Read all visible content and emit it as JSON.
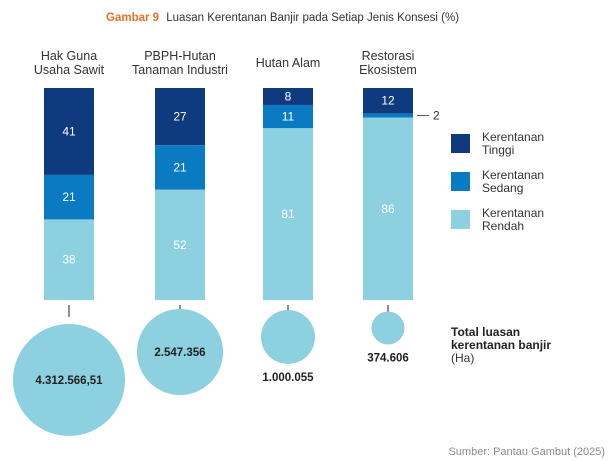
{
  "chart_data": {
    "type": "bar",
    "stacked": true,
    "title_prefix": "Gambar 9",
    "title": "Luasan Kerentanan Banjir pada Setiap Jenis Konsesi (%)",
    "categories": [
      [
        "Hak Guna",
        "Usaha Sawit"
      ],
      [
        "PBPH-Hutan",
        "Tanaman Industri"
      ],
      [
        "Hutan Alam"
      ],
      [
        "Restorasi",
        "Ekosistem"
      ]
    ],
    "series": [
      {
        "name": "Kerentanan Tinggi",
        "color": "#0f3a7d",
        "values": [
          41,
          27,
          8,
          12
        ],
        "labels": [
          "41",
          "27",
          "8",
          "12"
        ]
      },
      {
        "name": "Kerentanan Sedang",
        "color": "#0a7ac2",
        "values": [
          21,
          21,
          11,
          2
        ],
        "labels": [
          "21",
          "21",
          "11",
          "2"
        ]
      },
      {
        "name": "Kerentanan Rendah",
        "color": "#8dd0e0",
        "values": [
          38,
          52,
          81,
          86
        ],
        "labels": [
          "38",
          "52",
          "81",
          "86"
        ]
      }
    ],
    "legend": [
      {
        "lines": [
          "Kerentanan",
          "Tinggi"
        ],
        "color": "#0f3a7d"
      },
      {
        "lines": [
          "Kerentanan",
          "Sedang"
        ],
        "color": "#0a7ac2"
      },
      {
        "lines": [
          "Kerentanan",
          "Rendah"
        ],
        "color": "#8dd0e0"
      }
    ],
    "totals": {
      "values": [
        4312566.51,
        2547356,
        1000055,
        374606
      ],
      "labels": [
        "4.312.566,51",
        "2.547.356",
        "1.000.055",
        "374.606"
      ],
      "bubble_color": "#8dd0e0",
      "title_lines": [
        "Total luasan",
        "kerentanan banjir"
      ],
      "unit": "(Ha)"
    },
    "ylim": [
      0,
      100
    ],
    "source": "Sumber: Pantau Gambut (2025)"
  }
}
